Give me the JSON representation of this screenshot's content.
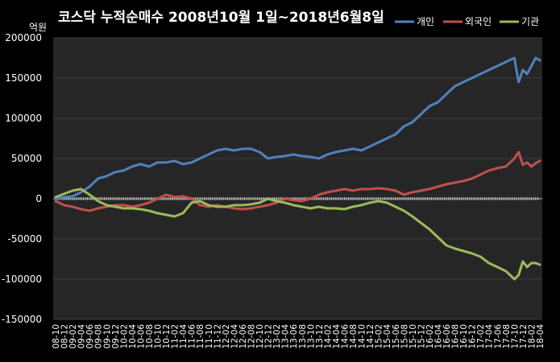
{
  "chart_data": {
    "type": "line",
    "title": "코스닥 누적순매수 2008년10월 1일~2018년6월8일",
    "unit_label": "억원",
    "ylim": [
      -150000,
      200000
    ],
    "y_ticks": [
      200000,
      150000,
      100000,
      50000,
      0,
      -50000,
      -100000,
      -150000
    ],
    "grid": true,
    "legend_position": "top-right",
    "x_ticks": [
      "08-10",
      "08-12",
      "09-02",
      "09-04",
      "09-06",
      "09-08",
      "09-10",
      "09-12",
      "10-02",
      "10-04",
      "10-06",
      "10-08",
      "10-10",
      "10-12",
      "11-02",
      "11-04",
      "11-06",
      "11-08",
      "11-10",
      "11-12",
      "12-02",
      "12-04",
      "12-06",
      "12-08",
      "12-10",
      "12-12",
      "13-02",
      "13-04",
      "13-06",
      "13-08",
      "13-10",
      "13-12",
      "14-02",
      "14-04",
      "14-06",
      "14-08",
      "14-10",
      "14-12",
      "15-02",
      "15-04",
      "15-06",
      "15-08",
      "15-10",
      "15-12",
      "16-02",
      "16-04",
      "16-06",
      "16-08",
      "16-10",
      "16-12",
      "17-02",
      "17-04",
      "17-06",
      "17-08",
      "17-10",
      "17-12",
      "18-02",
      "18-04"
    ],
    "x_range": [
      0,
      57
    ],
    "series": [
      {
        "name": "개인",
        "color": "#4f81bd",
        "x": [
          0,
          1,
          2,
          3,
          4,
          5,
          6,
          7,
          8,
          9,
          10,
          11,
          12,
          13,
          14,
          15,
          16,
          17,
          18,
          19,
          20,
          21,
          22,
          23,
          24,
          25,
          26,
          27,
          28,
          29,
          30,
          31,
          32,
          33,
          34,
          35,
          36,
          37,
          38,
          39,
          40,
          41,
          42,
          43,
          44,
          45,
          46,
          47,
          48,
          49,
          50,
          51,
          52,
          53,
          54,
          54.5,
          55,
          55.5,
          56,
          56.5,
          57
        ],
        "y": [
          0,
          2000,
          3000,
          8000,
          15000,
          25000,
          28000,
          33000,
          35000,
          40000,
          43000,
          40000,
          45000,
          45000,
          47000,
          43000,
          45000,
          50000,
          55000,
          60000,
          62000,
          60000,
          62000,
          62000,
          58000,
          50000,
          52000,
          53000,
          55000,
          53000,
          52000,
          50000,
          55000,
          58000,
          60000,
          62000,
          60000,
          65000,
          70000,
          75000,
          80000,
          90000,
          95000,
          105000,
          115000,
          120000,
          130000,
          140000,
          145000,
          150000,
          155000,
          160000,
          165000,
          170000,
          175000,
          145000,
          160000,
          155000,
          165000,
          175000,
          172000
        ]
      },
      {
        "name": "외국인",
        "color": "#c0504d",
        "x": [
          0,
          1,
          2,
          3,
          4,
          5,
          6,
          7,
          8,
          9,
          10,
          11,
          12,
          13,
          14,
          15,
          16,
          17,
          18,
          19,
          20,
          21,
          22,
          23,
          24,
          25,
          26,
          27,
          28,
          29,
          30,
          31,
          32,
          33,
          34,
          35,
          36,
          37,
          38,
          39,
          40,
          41,
          42,
          43,
          44,
          45,
          46,
          47,
          48,
          49,
          50,
          51,
          52,
          53,
          54,
          54.5,
          55,
          55.5,
          56,
          56.5,
          57
        ],
        "y": [
          -3000,
          -8000,
          -10000,
          -13000,
          -15000,
          -12000,
          -10000,
          -8000,
          -8000,
          -10000,
          -8000,
          -5000,
          0,
          5000,
          2000,
          3000,
          0,
          -8000,
          -10000,
          -8000,
          -10000,
          -12000,
          -13000,
          -12000,
          -10000,
          -8000,
          -5000,
          0,
          -2000,
          -3000,
          0,
          5000,
          8000,
          10000,
          12000,
          10000,
          12000,
          12000,
          13000,
          12000,
          10000,
          5000,
          8000,
          10000,
          12000,
          15000,
          18000,
          20000,
          22000,
          25000,
          30000,
          35000,
          38000,
          40000,
          50000,
          58000,
          42000,
          45000,
          40000,
          44000,
          47000
        ]
      },
      {
        "name": "기관",
        "color": "#9bbb59",
        "x": [
          0,
          1,
          2,
          3,
          4,
          5,
          6,
          7,
          8,
          9,
          10,
          11,
          12,
          13,
          14,
          15,
          16,
          17,
          18,
          19,
          20,
          21,
          22,
          23,
          24,
          25,
          26,
          27,
          28,
          29,
          30,
          31,
          32,
          33,
          34,
          35,
          36,
          37,
          38,
          39,
          40,
          41,
          42,
          43,
          44,
          45,
          46,
          47,
          48,
          49,
          50,
          51,
          52,
          53,
          54,
          54.5,
          55,
          55.5,
          56,
          56.5,
          57
        ],
        "y": [
          2000,
          6000,
          10000,
          12000,
          5000,
          -3000,
          -8000,
          -10000,
          -12000,
          -12000,
          -13000,
          -15000,
          -18000,
          -20000,
          -22000,
          -18000,
          -5000,
          -3000,
          -8000,
          -10000,
          -10000,
          -8000,
          -8000,
          -7000,
          -5000,
          0,
          -3000,
          -5000,
          -8000,
          -10000,
          -12000,
          -10000,
          -12000,
          -12000,
          -13000,
          -10000,
          -8000,
          -5000,
          -3000,
          -5000,
          -10000,
          -15000,
          -22000,
          -30000,
          -38000,
          -48000,
          -58000,
          -62000,
          -65000,
          -68000,
          -72000,
          -80000,
          -85000,
          -90000,
          -100000,
          -95000,
          -78000,
          -85000,
          -80000,
          -80000,
          -82000
        ]
      }
    ]
  }
}
